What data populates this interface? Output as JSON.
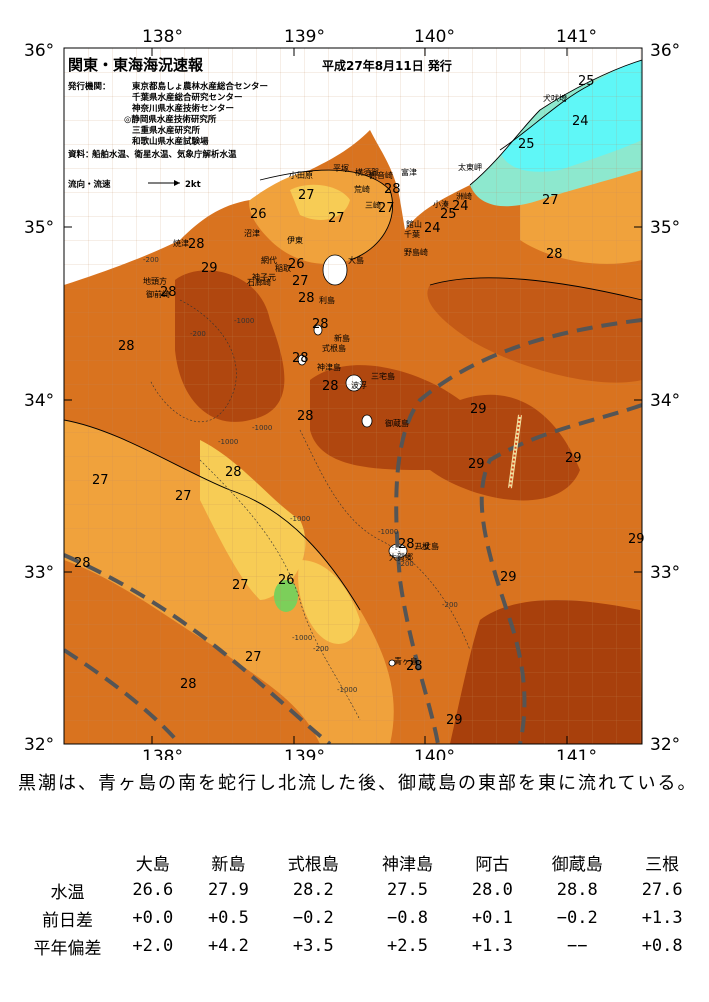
{
  "header": {
    "title": "関東・東海海況速報",
    "date": "平成27年8月11日 発行",
    "issuer_label": "発行機関：",
    "issuers": [
      "東京都島しょ農林水産総合センター",
      "千葉県水産総合研究センター",
      "神奈川県水産技術センター",
      "◎静岡県水産技術研究所",
      "三重県水産研究所",
      "和歌山県水産試験場"
    ],
    "source_label": "資料：",
    "source": "船舶水温、衛星水温、気象庁解析水温",
    "flow_label": "流向・流速",
    "flow_scale": "2kt"
  },
  "axes": {
    "lon_ticks": [
      "138°",
      "139°",
      "140°",
      "141°"
    ],
    "lat_ticks": [
      "36°",
      "35°",
      "34°",
      "33°",
      "32°"
    ]
  },
  "map": {
    "sst_labels": [
      "25",
      "24",
      "25",
      "27",
      "28",
      "28",
      "27",
      "27",
      "26",
      "27",
      "28",
      "29",
      "28",
      "25",
      "24",
      "24",
      "26",
      "27",
      "28",
      "28",
      "28",
      "28",
      "28",
      "28",
      "29",
      "29",
      "29",
      "27",
      "27",
      "28",
      "29",
      "28",
      "28",
      "27",
      "26",
      "27",
      "28",
      "29",
      "28",
      "29"
    ],
    "place_names": [
      "犬吠埼",
      "太東岬",
      "洲崎",
      "小湊",
      "館山",
      "千葉",
      "野島崎",
      "富津",
      "観音崎",
      "荒崎",
      "三崎",
      "横須賀",
      "平塚",
      "小田原",
      "石廊崎",
      "伊東",
      "網代",
      "稲取",
      "大島",
      "利島",
      "新島",
      "式根島",
      "神津島",
      "三宅島",
      "御蔵島",
      "八丈島",
      "大賀郷",
      "三根",
      "青ヶ島",
      "焼津",
      "御前崎",
      "地頭方",
      "沼津",
      "神子元",
      "波浮"
    ],
    "depth_labels": [
      "-200",
      "-1000",
      "-200",
      "-1000",
      "-1000",
      "-1000",
      "-200",
      "-1000",
      "-200",
      "-1000",
      "-1000",
      "-200"
    ],
    "colors": {
      "warm_29": "#b0470f",
      "warm_28": "#d9731f",
      "warm_27": "#f0a23c",
      "warm_26": "#f7cc55",
      "cool_25": "#8de8ce",
      "cool_24": "#5ff7f7",
      "land": "#ffffff",
      "kuroshio_axis": "#555555",
      "grid": "#c08a60"
    }
  },
  "summary": "黒潮は、青ヶ島の南を蛇行し北流した後、御蔵島の東部を東に流れている。",
  "table": {
    "columns": [
      "大島",
      "新島",
      "式根島",
      "神津島",
      "阿古",
      "御蔵島",
      "三根"
    ],
    "rows": [
      {
        "label": "水温",
        "values": [
          "26.6",
          "27.9",
          "28.2",
          "27.5",
          "28.0",
          "28.8",
          "27.6"
        ]
      },
      {
        "label": "前日差",
        "values": [
          "+0.0",
          "+0.5",
          "−0.2",
          "−0.8",
          "+0.1",
          "−0.2",
          "+1.3"
        ]
      },
      {
        "label": "平年偏差",
        "values": [
          "+2.0",
          "+4.2",
          "+3.5",
          "+2.5",
          "+1.3",
          "−−",
          "+0.8"
        ]
      }
    ]
  }
}
